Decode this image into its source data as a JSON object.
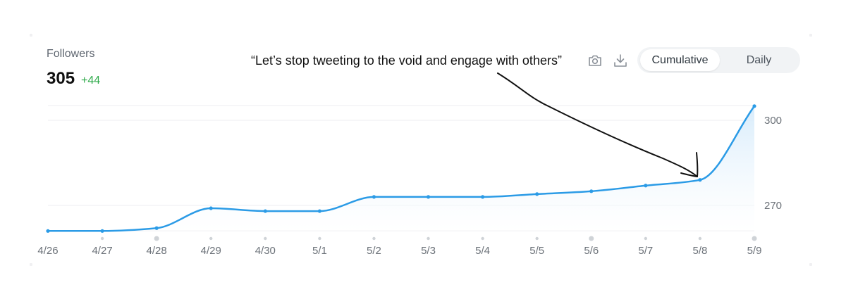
{
  "header": {
    "title": "Followers",
    "value": "305",
    "delta": "+44"
  },
  "annotation": "“Let’s stop tweeting to the void and engage with others”",
  "toolbar": {
    "camera_icon": "camera-icon",
    "download_icon": "download-icon",
    "toggle": [
      "Cumulative",
      "Daily"
    ],
    "active": "Cumulative"
  },
  "colors": {
    "line": "#2b9be6",
    "fill": "#e6f3fd",
    "delta": "#2eaa4a",
    "grid": "#eceef0"
  },
  "chart_data": {
    "type": "area",
    "x": [
      "4/26",
      "4/27",
      "4/28",
      "4/29",
      "4/30",
      "5/1",
      "5/2",
      "5/3",
      "5/4",
      "5/5",
      "5/6",
      "5/7",
      "5/8",
      "5/9"
    ],
    "values": [
      261,
      261,
      262,
      269,
      268,
      268,
      273,
      273,
      273,
      274,
      275,
      277,
      279,
      305
    ],
    "yticks": [
      270,
      300
    ],
    "ylim": [
      260,
      305
    ],
    "grid": true,
    "legend": "none"
  }
}
